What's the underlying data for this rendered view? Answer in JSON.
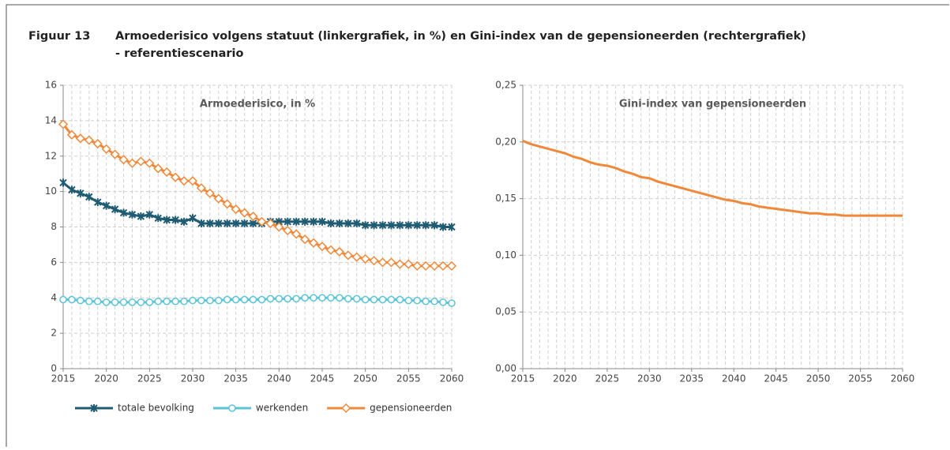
{
  "figure": {
    "number": "Figuur 13",
    "title_line1": "Armoederisico volgens statuut (linkergrafiek, in %) en Gini-index van de gepensioneerden (rechtergrafiek)",
    "title_line2": "- referentiescenario"
  },
  "chart_data": [
    {
      "type": "line",
      "title": "Armoederisico, in %",
      "x": [
        2015,
        2016,
        2017,
        2018,
        2019,
        2020,
        2021,
        2022,
        2023,
        2024,
        2025,
        2026,
        2027,
        2028,
        2029,
        2030,
        2031,
        2032,
        2033,
        2034,
        2035,
        2036,
        2037,
        2038,
        2039,
        2040,
        2041,
        2042,
        2043,
        2044,
        2045,
        2046,
        2047,
        2048,
        2049,
        2050,
        2051,
        2052,
        2053,
        2054,
        2055,
        2056,
        2057,
        2058,
        2059,
        2060
      ],
      "xlim": [
        2015,
        2060
      ],
      "xticks": [
        2015,
        2020,
        2025,
        2030,
        2035,
        2040,
        2045,
        2050,
        2055,
        2060
      ],
      "ylim": [
        0,
        16
      ],
      "yticks": [
        0,
        2,
        4,
        6,
        8,
        10,
        12,
        14,
        16
      ],
      "grid": true,
      "legend": "bottom",
      "series": [
        {
          "name": "totale bevolking",
          "color": "#1f5c73",
          "marker": "star",
          "values": [
            10.5,
            10.1,
            9.9,
            9.7,
            9.4,
            9.2,
            9.0,
            8.8,
            8.7,
            8.6,
            8.7,
            8.5,
            8.4,
            8.4,
            8.3,
            8.5,
            8.2,
            8.2,
            8.2,
            8.2,
            8.2,
            8.2,
            8.2,
            8.2,
            8.3,
            8.3,
            8.3,
            8.3,
            8.3,
            8.3,
            8.3,
            8.2,
            8.2,
            8.2,
            8.2,
            8.1,
            8.1,
            8.1,
            8.1,
            8.1,
            8.1,
            8.1,
            8.1,
            8.1,
            8.0,
            8.0
          ]
        },
        {
          "name": "werkenden",
          "color": "#5bc5d6",
          "marker": "circle",
          "values": [
            3.9,
            3.9,
            3.85,
            3.8,
            3.8,
            3.75,
            3.75,
            3.75,
            3.75,
            3.75,
            3.75,
            3.8,
            3.8,
            3.8,
            3.8,
            3.85,
            3.85,
            3.85,
            3.85,
            3.9,
            3.9,
            3.9,
            3.9,
            3.9,
            3.95,
            3.95,
            3.95,
            3.95,
            4.0,
            4.0,
            4.0,
            4.0,
            4.0,
            3.95,
            3.95,
            3.9,
            3.9,
            3.9,
            3.9,
            3.9,
            3.85,
            3.85,
            3.8,
            3.8,
            3.75,
            3.7
          ]
        },
        {
          "name": "gepensioneerden",
          "color": "#f0883a",
          "marker": "diamond",
          "values": [
            13.8,
            13.2,
            13.0,
            12.9,
            12.7,
            12.4,
            12.1,
            11.8,
            11.6,
            11.7,
            11.6,
            11.3,
            11.1,
            10.8,
            10.6,
            10.6,
            10.2,
            9.9,
            9.6,
            9.3,
            9.0,
            8.8,
            8.6,
            8.3,
            8.2,
            8.0,
            7.8,
            7.6,
            7.3,
            7.1,
            6.9,
            6.7,
            6.6,
            6.4,
            6.3,
            6.2,
            6.1,
            6.0,
            6.0,
            5.9,
            5.9,
            5.8,
            5.8,
            5.8,
            5.8,
            5.8
          ]
        }
      ]
    },
    {
      "type": "line",
      "title": "Gini-index van gepensioneerden",
      "x": [
        2015,
        2016,
        2017,
        2018,
        2019,
        2020,
        2021,
        2022,
        2023,
        2024,
        2025,
        2026,
        2027,
        2028,
        2029,
        2030,
        2031,
        2032,
        2033,
        2034,
        2035,
        2036,
        2037,
        2038,
        2039,
        2040,
        2041,
        2042,
        2043,
        2044,
        2045,
        2046,
        2047,
        2048,
        2049,
        2050,
        2051,
        2052,
        2053,
        2054,
        2055,
        2056,
        2057,
        2058,
        2059,
        2060
      ],
      "xlim": [
        2015,
        2060
      ],
      "xticks": [
        2015,
        2020,
        2025,
        2030,
        2035,
        2040,
        2045,
        2050,
        2055,
        2060
      ],
      "ylim": [
        0,
        0.25
      ],
      "yticks": [
        {
          "value": 0,
          "label": "0,00"
        },
        {
          "value": 0.05,
          "label": "0,05"
        },
        {
          "value": 0.1,
          "label": "0,10"
        },
        {
          "value": 0.15,
          "label": "0,15"
        },
        {
          "value": 0.2,
          "label": "0,20"
        },
        {
          "value": 0.25,
          "label": "0,25"
        }
      ],
      "grid": true,
      "color": "#f0883a",
      "values": [
        0.201,
        0.198,
        0.196,
        0.194,
        0.192,
        0.19,
        0.187,
        0.185,
        0.182,
        0.18,
        0.179,
        0.177,
        0.174,
        0.172,
        0.169,
        0.168,
        0.165,
        0.163,
        0.161,
        0.159,
        0.157,
        0.155,
        0.153,
        0.151,
        0.149,
        0.148,
        0.146,
        0.145,
        0.143,
        0.142,
        0.141,
        0.14,
        0.139,
        0.138,
        0.137,
        0.137,
        0.136,
        0.136,
        0.135,
        0.135,
        0.135,
        0.135,
        0.135,
        0.135,
        0.135,
        0.135
      ]
    }
  ]
}
